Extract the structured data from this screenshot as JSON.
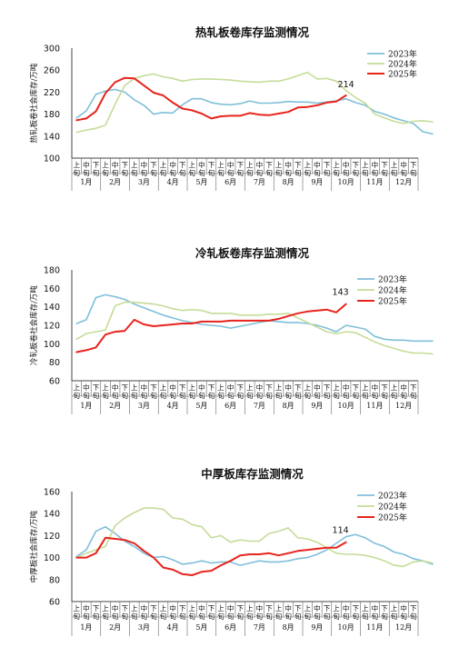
{
  "chart_data": [
    {
      "type": "line",
      "title": "热轧板卷库存监测情况",
      "ylabel": "热轧板卷社会库存/万吨",
      "ylim": [
        100,
        300
      ],
      "yticks": [
        100,
        140,
        180,
        220,
        260,
        300
      ],
      "months": [
        "1月",
        "2月",
        "3月",
        "4月",
        "5月",
        "6月",
        "7月",
        "8月",
        "9月",
        "10月",
        "11月",
        "12月"
      ],
      "dekad_labels": [
        "上旬",
        "中旬",
        "下旬"
      ],
      "legend_position": "top-right",
      "annotation": {
        "text": "214",
        "series": "2025年"
      },
      "series": [
        {
          "name": "2023年",
          "color": "#7fbfd9",
          "values": [
            173,
            186,
            216,
            222,
            225,
            220,
            206,
            196,
            180,
            183,
            182,
            197,
            208,
            208,
            201,
            198,
            197,
            199,
            204,
            200,
            200,
            201,
            203,
            202,
            202,
            200,
            202,
            204,
            208,
            201,
            196,
            185,
            180,
            173,
            168,
            163,
            148,
            144
          ]
        },
        {
          "name": "2024年",
          "color": "#c5dc98",
          "values": [
            147,
            151,
            154,
            160,
            198,
            232,
            245,
            250,
            253,
            248,
            245,
            240,
            243,
            244,
            244,
            243,
            242,
            240,
            239,
            238,
            240,
            240,
            244,
            250,
            256,
            244,
            245,
            240,
            223,
            210,
            200,
            180,
            173,
            167,
            163,
            167,
            168,
            166
          ]
        },
        {
          "name": "2025年",
          "color": "#e8231c",
          "values": [
            169,
            172,
            185,
            218,
            238,
            246,
            245,
            232,
            219,
            214,
            201,
            190,
            187,
            181,
            172,
            176,
            177,
            177,
            182,
            179,
            178,
            181,
            184,
            192,
            193,
            196,
            201,
            203,
            214
          ]
        }
      ]
    },
    {
      "type": "line",
      "title": "冷轧板卷库存监测情况",
      "ylabel": "冷轧板卷社会库存/万吨",
      "ylim": [
        60,
        180
      ],
      "yticks": [
        60,
        80,
        100,
        120,
        140,
        160,
        180
      ],
      "months": [
        "1月",
        "2月",
        "3月",
        "4月",
        "5月",
        "6月",
        "7月",
        "8月",
        "9月",
        "10月",
        "11月",
        "12月"
      ],
      "dekad_labels": [
        "上旬",
        "中旬",
        "下旬"
      ],
      "legend_position": "top-right",
      "annotation": {
        "text": "143",
        "series": "2025年"
      },
      "series": [
        {
          "name": "2023年",
          "color": "#7fbfd9",
          "values": [
            122,
            126,
            150,
            153,
            151,
            148,
            143,
            139,
            135,
            131,
            128,
            125,
            123,
            121,
            120,
            119,
            117,
            119,
            121,
            123,
            125,
            124,
            123,
            123,
            122,
            120,
            117,
            113,
            120,
            118,
            116,
            108,
            105,
            104,
            104,
            103,
            103,
            103
          ]
        },
        {
          "name": "2024年",
          "color": "#c5dc98",
          "values": [
            105,
            111,
            113,
            115,
            141,
            145,
            145,
            144,
            143,
            141,
            138,
            136,
            137,
            136,
            133,
            133,
            133,
            131,
            131,
            131,
            132,
            132,
            133,
            128,
            123,
            118,
            113,
            111,
            113,
            112,
            107,
            102,
            98,
            95,
            92,
            90,
            90,
            89
          ]
        },
        {
          "name": "2025年",
          "color": "#e8231c",
          "values": [
            91,
            93,
            96,
            110,
            113,
            114,
            126,
            121,
            119,
            120,
            121,
            122,
            122,
            124,
            124,
            124,
            125,
            125,
            125,
            125,
            125,
            127,
            130,
            133,
            135,
            136,
            137,
            134,
            143
          ]
        }
      ]
    },
    {
      "type": "line",
      "title": "中厚板库存监测情况",
      "ylabel": "中厚板社会库存/万吨",
      "ylim": [
        60,
        160
      ],
      "yticks": [
        60,
        80,
        100,
        120,
        140,
        160
      ],
      "months": [
        "1月",
        "2月",
        "3月",
        "4月",
        "5月",
        "6月",
        "7月",
        "8月",
        "9月",
        "10月",
        "11月",
        "12月"
      ],
      "dekad_labels": [
        "上旬",
        "中旬",
        "下旬"
      ],
      "legend_position": "top-right",
      "annotation": {
        "text": "114",
        "series": "2025年"
      },
      "series": [
        {
          "name": "2023年",
          "color": "#7fbfd9",
          "values": [
            101,
            107,
            124,
            128,
            122,
            115,
            110,
            104,
            100,
            101,
            98,
            94,
            95,
            97,
            95,
            96,
            96,
            93,
            95,
            97,
            96,
            96,
            97,
            99,
            100,
            103,
            107,
            113,
            119,
            121,
            118,
            113,
            110,
            105,
            103,
            99,
            97,
            94
          ]
        },
        {
          "name": "2024年",
          "color": "#c5dc98",
          "values": [
            100,
            104,
            107,
            110,
            129,
            136,
            141,
            145,
            145,
            144,
            136,
            135,
            130,
            128,
            118,
            120,
            114,
            116,
            115,
            115,
            122,
            124,
            127,
            118,
            117,
            114,
            109,
            104,
            103,
            103,
            102,
            100,
            97,
            93,
            92,
            96,
            97,
            95
          ]
        },
        {
          "name": "2025年",
          "color": "#e8231c",
          "values": [
            100,
            100,
            104,
            118,
            117,
            116,
            113,
            106,
            100,
            91,
            89,
            85,
            84,
            87,
            88,
            93,
            97,
            102,
            103,
            103,
            104,
            102,
            104,
            106,
            107,
            108,
            109,
            109,
            114
          ]
        }
      ]
    }
  ]
}
